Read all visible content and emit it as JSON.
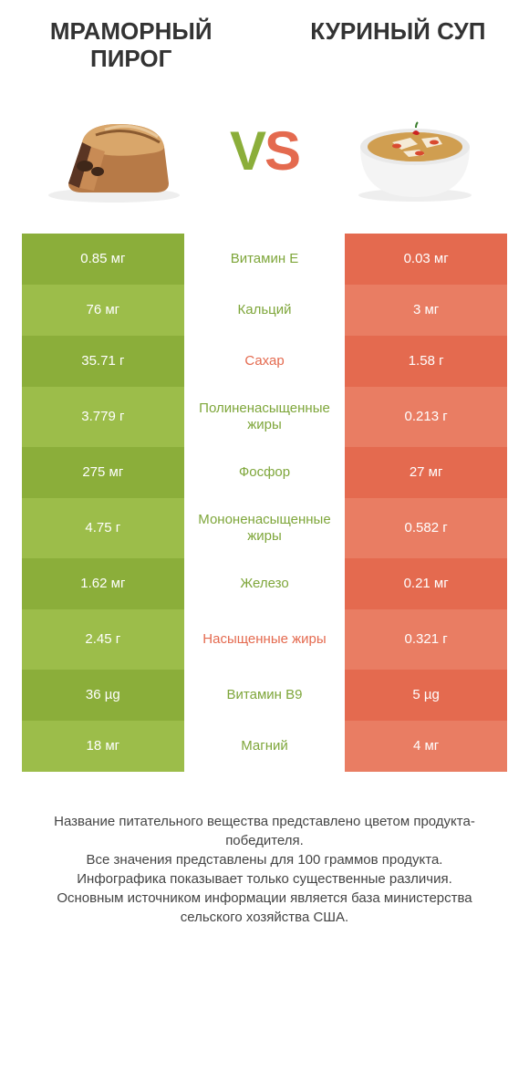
{
  "titles": {
    "left": "МРАМОРНЫЙ ПИРОГ",
    "right": "КУРИНЫЙ СУП"
  },
  "vs": {
    "v": "V",
    "s": "S"
  },
  "colors": {
    "green_a": "#8bae3a",
    "green_b": "#9cbd4a",
    "red_a": "#e46a4f",
    "red_b": "#e97d63",
    "mid_green": "#7ea63a",
    "mid_red": "#e46a4f"
  },
  "rows": [
    {
      "left": "0.85 мг",
      "mid": "Витамин E",
      "right": "0.03 мг",
      "winner": "left",
      "tall": false
    },
    {
      "left": "76 мг",
      "mid": "Кальций",
      "right": "3 мг",
      "winner": "left",
      "tall": false
    },
    {
      "left": "35.71 г",
      "mid": "Сахар",
      "right": "1.58 г",
      "winner": "right",
      "tall": false
    },
    {
      "left": "3.779 г",
      "mid": "Полиненасыщенные жиры",
      "right": "0.213 г",
      "winner": "left",
      "tall": true
    },
    {
      "left": "275 мг",
      "mid": "Фосфор",
      "right": "27 мг",
      "winner": "left",
      "tall": false
    },
    {
      "left": "4.75 г",
      "mid": "Мононенасыщенные жиры",
      "right": "0.582 г",
      "winner": "left",
      "tall": true
    },
    {
      "left": "1.62 мг",
      "mid": "Железо",
      "right": "0.21 мг",
      "winner": "left",
      "tall": false
    },
    {
      "left": "2.45 г",
      "mid": "Насыщенные жиры",
      "right": "0.321 г",
      "winner": "right",
      "tall": true
    },
    {
      "left": "36 µg",
      "mid": "Витамин B9",
      "right": "5 µg",
      "winner": "left",
      "tall": false
    },
    {
      "left": "18 мг",
      "mid": "Магний",
      "right": "4 мг",
      "winner": "left",
      "tall": false
    }
  ],
  "footer": {
    "l1": "Название питательного вещества представлено цветом продукта-победителя.",
    "l2": "Все значения представлены для 100 граммов продукта.",
    "l3": "Инфографика показывает только существенные различия.",
    "l4": "Основным источником информации является база министерства сельского хозяйства США."
  }
}
